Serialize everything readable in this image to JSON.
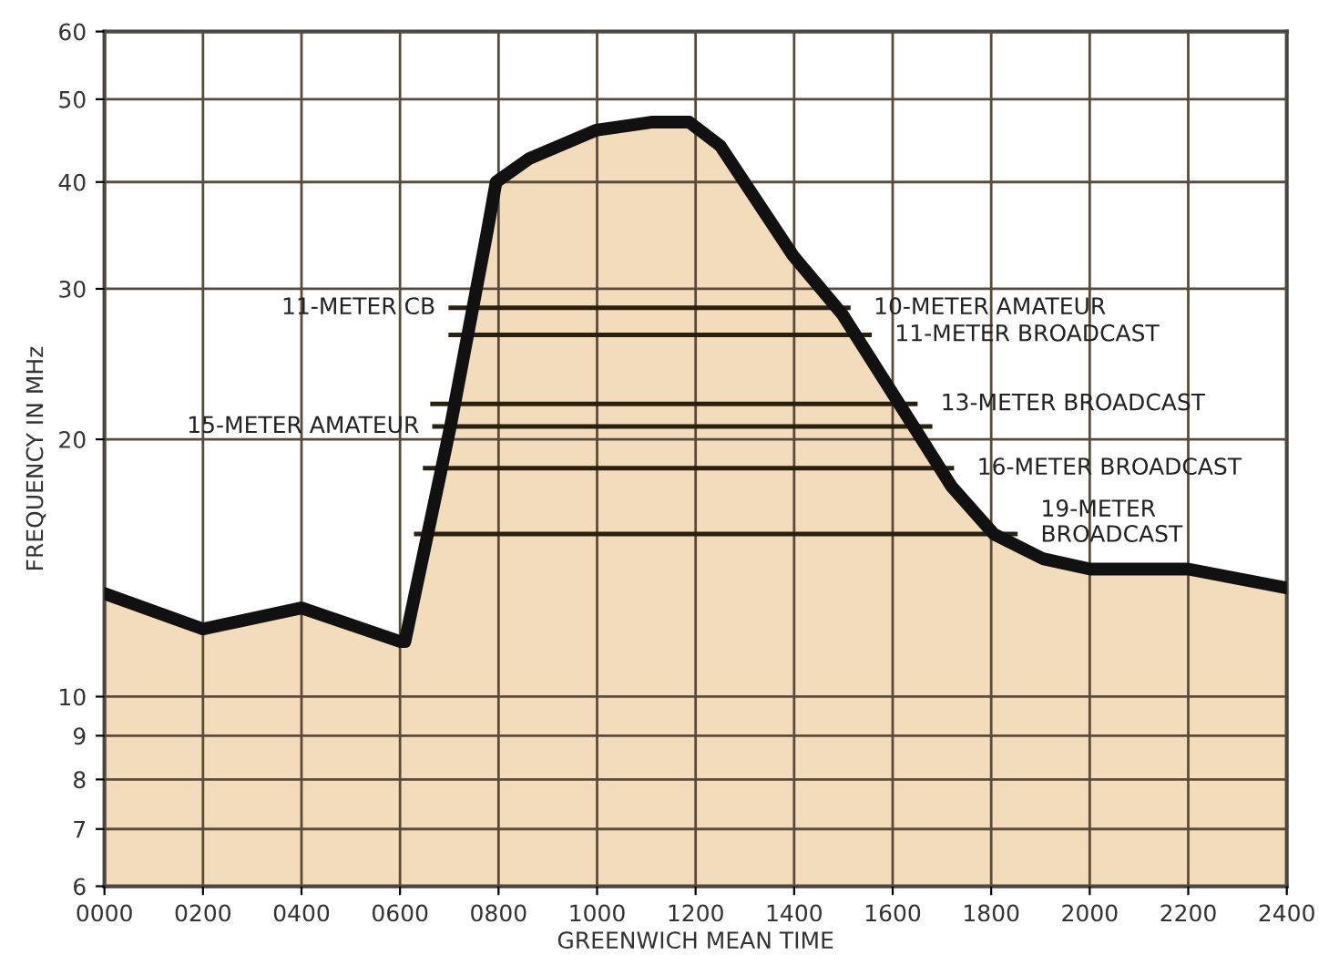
{
  "chart_data": {
    "type": "area",
    "xlabel": "GREENWICH MEAN TIME",
    "ylabel": "FREQUENCY IN MHz",
    "log": "y",
    "grid": true,
    "legend": false,
    "xlim": [
      0,
      2400
    ],
    "ylim": [
      6,
      60
    ],
    "xticks": [
      {
        "value": 0,
        "label": "0000"
      },
      {
        "value": 200,
        "label": "0200"
      },
      {
        "value": 400,
        "label": "0400"
      },
      {
        "value": 600,
        "label": "0600"
      },
      {
        "value": 800,
        "label": "0800"
      },
      {
        "value": 1000,
        "label": "1000"
      },
      {
        "value": 1200,
        "label": "1200"
      },
      {
        "value": 1400,
        "label": "1400"
      },
      {
        "value": 1600,
        "label": "1600"
      },
      {
        "value": 1800,
        "label": "1800"
      },
      {
        "value": 2000,
        "label": "2000"
      },
      {
        "value": 2200,
        "label": "2200"
      },
      {
        "value": 2400,
        "label": "2400"
      }
    ],
    "yticks": [
      6,
      7,
      8,
      9,
      10,
      20,
      30,
      40,
      50,
      60
    ],
    "series": [
      {
        "color": "#f2dcbb",
        "x": [
          0,
          200,
          400,
          600,
          610,
          703,
          777,
          795,
          862,
          998,
          1110,
          1187,
          1250,
          1398,
          1498,
          1609,
          1720,
          1805,
          1905,
          2001,
          2200,
          2400
        ],
        "values": [
          13.2,
          12.0,
          12.7,
          11.6,
          11.6,
          20.8,
          35.0,
          40.0,
          42.6,
          46.0,
          47.0,
          47.0,
          44.1,
          32.8,
          28.0,
          22.2,
          17.6,
          15.5,
          14.5,
          14.1,
          14.1,
          13.4
        ]
      },
      {
        "type": "line",
        "color": "#2a2010",
        "x": [
          703,
          1510
        ],
        "values": [
          28.5,
          28.5
        ]
      },
      {
        "type": "line",
        "color": "#2a2010",
        "x": [
          703,
          1553
        ],
        "values": [
          26.5,
          26.5
        ]
      },
      {
        "type": "line",
        "color": "#2a2010",
        "x": [
          666,
          1646
        ],
        "values": [
          22.0,
          22.0
        ]
      },
      {
        "type": "line",
        "color": "#2a2010",
        "x": [
          670,
          1676
        ],
        "values": [
          20.7,
          20.7
        ]
      },
      {
        "type": "line",
        "color": "#2a2010",
        "x": [
          651,
          1720
        ],
        "values": [
          18.5,
          18.5
        ]
      },
      {
        "type": "line",
        "color": "#2a2010",
        "x": [
          633,
          1849
        ],
        "values": [
          15.5,
          15.5
        ]
      }
    ],
    "annotations": [
      {
        "text": "11-METER CB",
        "x": 703,
        "y": 28.5
      },
      {
        "text": "10-METER AMATEUR",
        "x": 1510,
        "y": 28.5
      },
      {
        "text": "11-METER BROADCAST",
        "x": 1553,
        "y": 26.5
      },
      {
        "text": "13-METER BROADCAST",
        "x": 1646,
        "y": 22.0
      },
      {
        "text": "15-METER AMATEUR",
        "x": 670,
        "y": 20.7
      },
      {
        "text": "16-METER BROADCAST",
        "x": 1720,
        "y": 18.5
      },
      {
        "text": "19-METER\nBROADCAST",
        "x": 1849,
        "y": 15.5
      }
    ]
  }
}
